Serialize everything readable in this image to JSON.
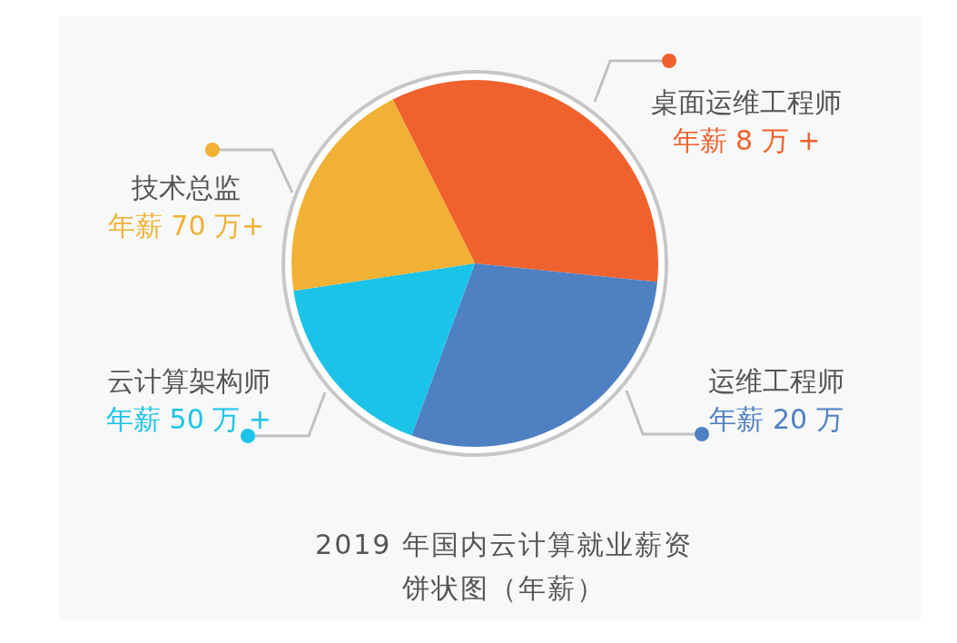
{
  "chart_data": {
    "type": "pie",
    "title": "2019 年国内云计算就业薪资饼状图（年薪）",
    "legend": "right",
    "categories": [
      "桌面运维工程师",
      "运维工程师",
      "云计算架构师",
      "技术总监"
    ],
    "values": [
      34,
      29,
      17,
      20
    ],
    "value_labels": [
      "年薪 8 万 +",
      "年薪 20 万",
      "年薪 50 万 +",
      "年薪 70 万+"
    ],
    "colors": [
      "#f0622d",
      "#4f80c2",
      "#1bc3e9",
      "#f0b135"
    ]
  }
}
